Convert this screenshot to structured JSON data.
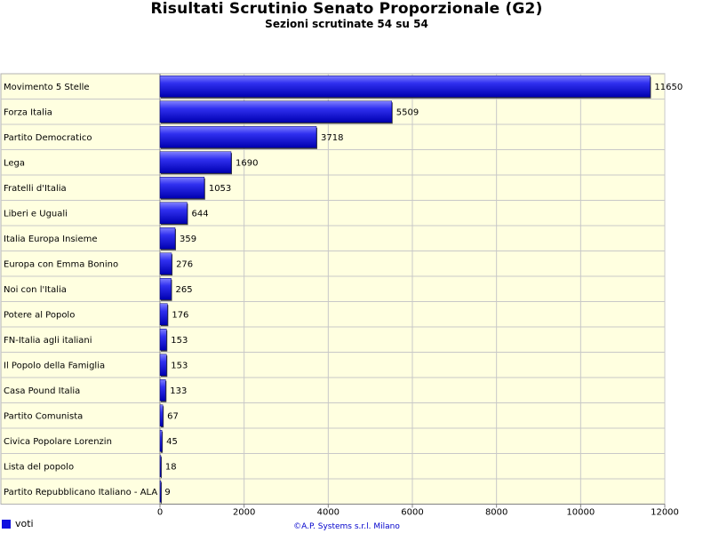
{
  "chart_data": {
    "type": "bar",
    "orientation": "horizontal",
    "title": "Risultati Scrutinio Senato Proporzionale (G2)",
    "subtitle": "Sezioni scrutinate 54 su 54",
    "categories": [
      "Movimento 5 Stelle",
      "Forza Italia",
      "Partito Democratico",
      "Lega",
      "Fratelli d'Italia",
      "Liberi e Uguali",
      "Italia Europa Insieme",
      "Europa con Emma Bonino",
      "Noi con l'Italia",
      "Potere al Popolo",
      "FN-Italia agli italiani",
      "Il Popolo della Famiglia",
      "Casa Pound Italia",
      "Partito Comunista",
      "Civica Popolare Lorenzin",
      "Lista del popolo",
      "Partito Repubblicano Italiano - ALA"
    ],
    "series": [
      {
        "name": "voti",
        "values": [
          11650,
          5509,
          3718,
          1690,
          1053,
          644,
          359,
          276,
          265,
          176,
          153,
          153,
          133,
          67,
          45,
          18,
          9
        ],
        "color": "#1010e0"
      }
    ],
    "xlim": [
      0,
      12000
    ],
    "xticks": [
      0,
      2000,
      4000,
      6000,
      8000,
      10000,
      12000
    ],
    "grid": true,
    "legend_position": "bottom-left",
    "plot_background": "#ffffe0"
  },
  "footer": "©A.P. Systems s.r.l. Milano"
}
